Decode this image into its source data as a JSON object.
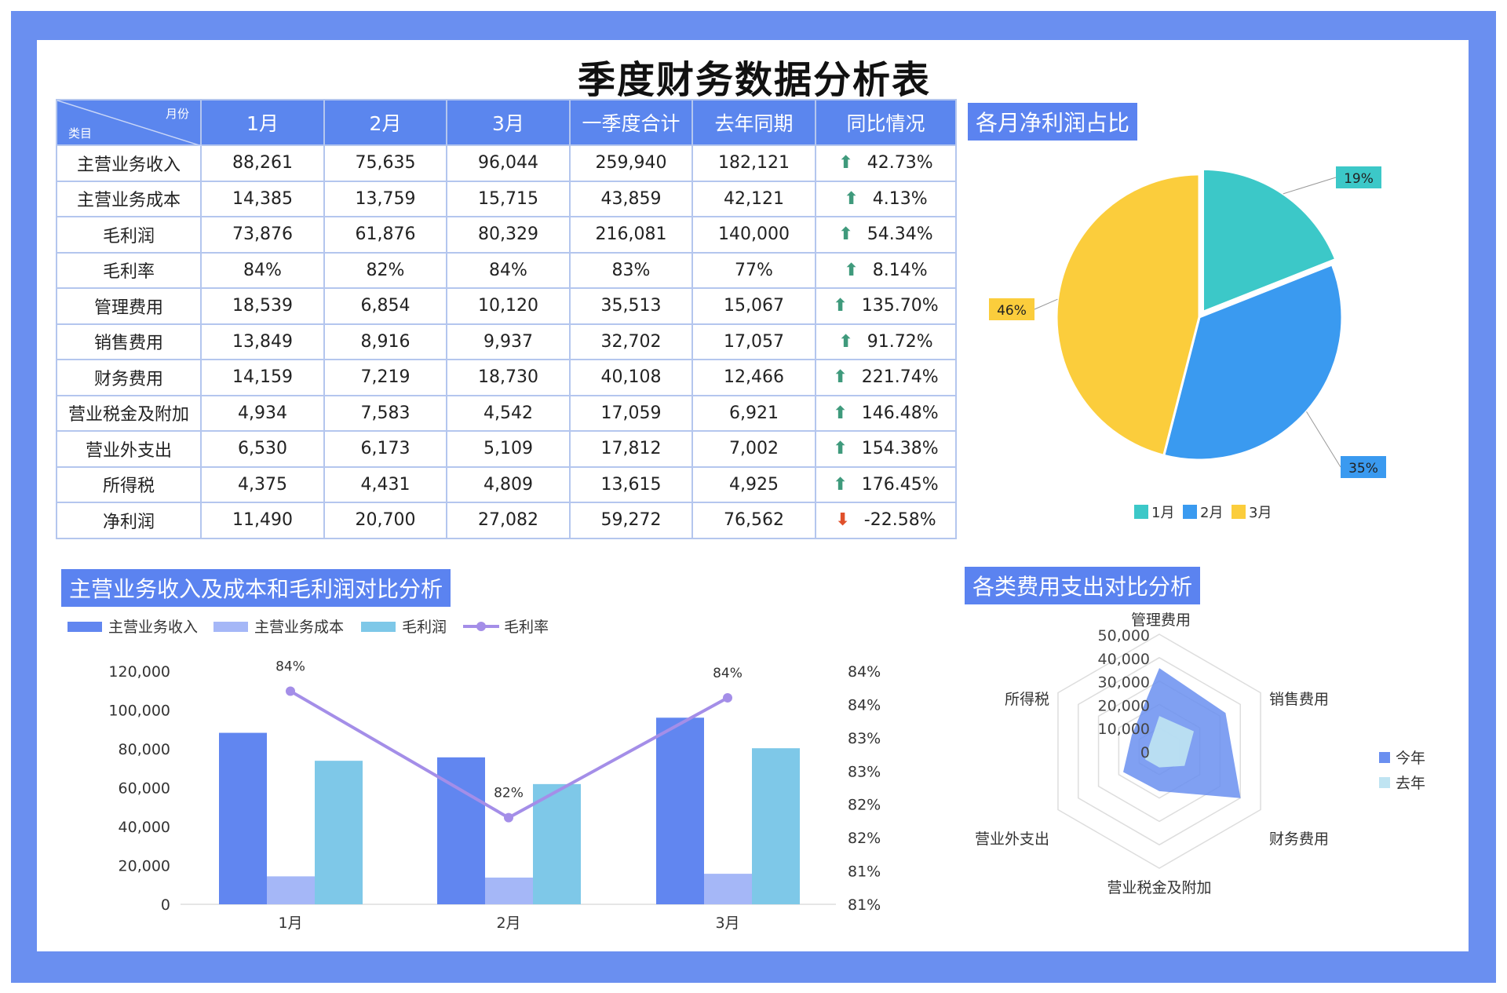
{
  "title": "季度财务数据分析表",
  "table": {
    "corner_top": "月份",
    "corner_bottom": "类目",
    "headers": [
      "1月",
      "2月",
      "3月",
      "一季度合计",
      "去年同期",
      "同比情况"
    ],
    "rows": [
      {
        "label": "主营业务收入",
        "values": [
          "88,261",
          "75,635",
          "96,044",
          "259,940",
          "182,121"
        ],
        "trend": "up",
        "yoy": "42.73%"
      },
      {
        "label": "主营业务成本",
        "values": [
          "14,385",
          "13,759",
          "15,715",
          "43,859",
          "42,121"
        ],
        "trend": "up",
        "yoy": "4.13%"
      },
      {
        "label": "毛利润",
        "values": [
          "73,876",
          "61,876",
          "80,329",
          "216,081",
          "140,000"
        ],
        "trend": "up",
        "yoy": "54.34%"
      },
      {
        "label": "毛利率",
        "values": [
          "84%",
          "82%",
          "84%",
          "83%",
          "77%"
        ],
        "trend": "up",
        "yoy": "8.14%"
      },
      {
        "label": "管理费用",
        "values": [
          "18,539",
          "6,854",
          "10,120",
          "35,513",
          "15,067"
        ],
        "trend": "up",
        "yoy": "135.70%"
      },
      {
        "label": "销售费用",
        "values": [
          "13,849",
          "8,916",
          "9,937",
          "32,702",
          "17,057"
        ],
        "trend": "up",
        "yoy": "91.72%"
      },
      {
        "label": "财务费用",
        "values": [
          "14,159",
          "7,219",
          "18,730",
          "40,108",
          "12,466"
        ],
        "trend": "up",
        "yoy": "221.74%"
      },
      {
        "label": "营业税金及附加",
        "values": [
          "4,934",
          "7,583",
          "4,542",
          "17,059",
          "6,921"
        ],
        "trend": "up",
        "yoy": "146.48%"
      },
      {
        "label": "营业外支出",
        "values": [
          "6,530",
          "6,173",
          "5,109",
          "17,812",
          "7,002"
        ],
        "trend": "up",
        "yoy": "154.38%"
      },
      {
        "label": "所得税",
        "values": [
          "4,375",
          "4,431",
          "4,809",
          "13,615",
          "4,925"
        ],
        "trend": "up",
        "yoy": "176.45%"
      },
      {
        "label": "净利润",
        "values": [
          "11,490",
          "20,700",
          "27,082",
          "59,272",
          "76,562"
        ],
        "trend": "down",
        "yoy": "-22.58%"
      }
    ]
  },
  "colors": {
    "frame": "#6a8ff0",
    "header": "#5b86ee",
    "up": "#3f9a7c",
    "down": "#e0502a"
  },
  "chart_data": [
    {
      "type": "pie",
      "title": "各月净利润占比",
      "categories": [
        "1月",
        "2月",
        "3月"
      ],
      "values": [
        19,
        35,
        46
      ],
      "labels": [
        "19%",
        "35%",
        "46%"
      ],
      "colors": [
        "#3cc8c8",
        "#3a9af0",
        "#fbcd3c"
      ],
      "legend": "bottom"
    },
    {
      "type": "bar",
      "title": "主营业务收入及成本和毛利润对比分析",
      "categories": [
        "1月",
        "2月",
        "3月"
      ],
      "series": [
        {
          "name": "主营业务收入",
          "type": "bar",
          "values": [
            88261,
            75635,
            96044
          ],
          "color": "#6186f0"
        },
        {
          "name": "主营业务成本",
          "type": "bar",
          "values": [
            14385,
            13759,
            15715
          ],
          "color": "#a5b7f7"
        },
        {
          "name": "毛利润",
          "type": "bar",
          "values": [
            73876,
            61876,
            80329
          ],
          "color": "#7ec8e8"
        },
        {
          "name": "毛利率",
          "type": "line",
          "axis": "right",
          "values": [
            0.837,
            0.818,
            0.836
          ],
          "labels": [
            "84%",
            "82%",
            "84%"
          ],
          "color": "#a48ee8"
        }
      ],
      "ylim": [
        0,
        120000
      ],
      "yticks": [
        "120,000",
        "100,000",
        "80,000",
        "60,000",
        "40,000",
        "20,000",
        "0"
      ],
      "y2lim": [
        0.805,
        0.84
      ],
      "y2ticks": [
        "84%",
        "84%",
        "83%",
        "83%",
        "82%",
        "82%",
        "81%",
        "81%"
      ],
      "legend": "top-left",
      "grid": false
    },
    {
      "type": "radar",
      "title": "各类费用支出对比分析",
      "categories": [
        "管理费用",
        "销售费用",
        "财务费用",
        "营业税金及附加",
        "营业外支出",
        "所得税"
      ],
      "series": [
        {
          "name": "今年",
          "values": [
            35513,
            32702,
            40108,
            17059,
            17812,
            13615
          ],
          "color": "#6a8ff0"
        },
        {
          "name": "去年",
          "values": [
            15067,
            17057,
            12466,
            6921,
            7002,
            4925
          ],
          "color": "#bfe4f2"
        }
      ],
      "rlim": [
        0,
        50000
      ],
      "rticks": [
        "50,000",
        "40,000",
        "30,000",
        "20,000",
        "10,000",
        "0"
      ],
      "legend": "right"
    }
  ]
}
